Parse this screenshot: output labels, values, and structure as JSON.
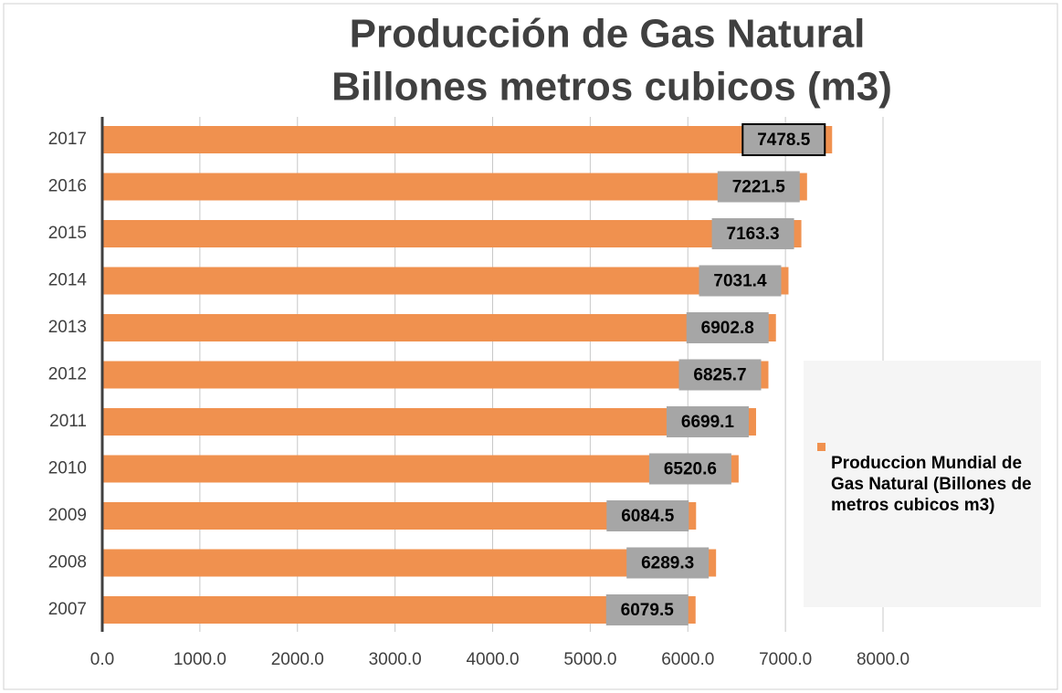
{
  "chart_data": {
    "type": "hbar",
    "title": [
      "Producción de Gas Natural",
      "Billones metros cubicos (m3)"
    ],
    "categories": [
      "2007",
      "2008",
      "2009",
      "2010",
      "2011",
      "2012",
      "2013",
      "2014",
      "2015",
      "2016",
      "2017"
    ],
    "series": [
      {
        "name": "Produccion Mundial de Gas Natural (Billones de metros cubicos m3)",
        "color": "#f0914f",
        "values": [
          6079.5,
          6289.3,
          6084.5,
          6520.6,
          6699.1,
          6825.7,
          6902.8,
          7031.4,
          7163.3,
          7221.5,
          7478.5
        ]
      }
    ],
    "xlim": [
      0,
      8000
    ],
    "xticks": [
      {
        "value": 0,
        "label": "0.0"
      },
      {
        "value": 1000,
        "label": "1000.0"
      },
      {
        "value": 2000,
        "label": "2000.0"
      },
      {
        "value": 3000,
        "label": "3000.0"
      },
      {
        "value": 4000,
        "label": "4000.0"
      },
      {
        "value": 5000,
        "label": "5000.0"
      },
      {
        "value": 6000,
        "label": "6000.0"
      },
      {
        "value": 7000,
        "label": "7000.0"
      },
      {
        "value": 8000,
        "label": "8000.0"
      }
    ],
    "grid": true,
    "legend": "right"
  }
}
